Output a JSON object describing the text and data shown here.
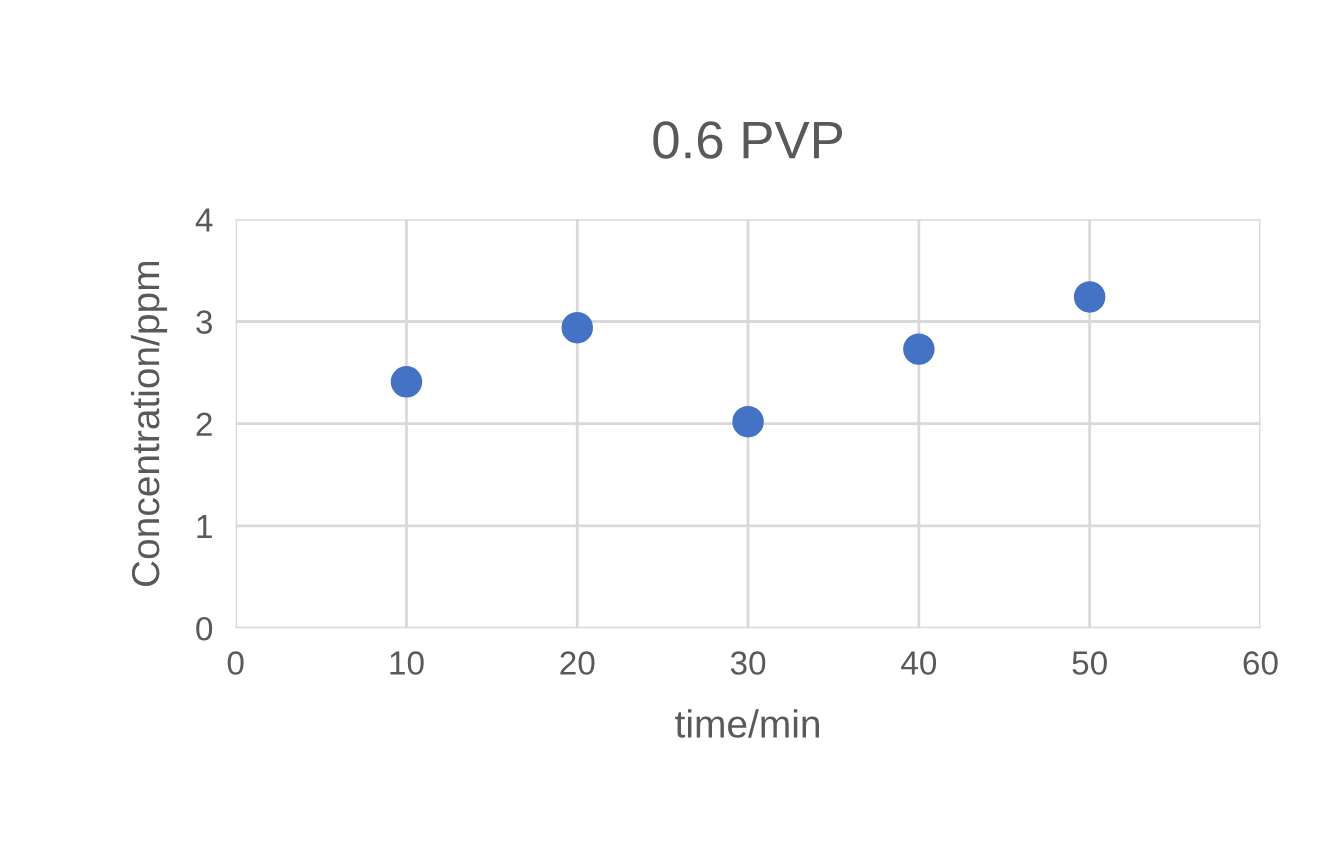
{
  "chart_data": {
    "type": "scatter",
    "title": "0.6 PVP",
    "xlabel": "time/min",
    "ylabel": "Concentration/ppm",
    "x": [
      10,
      20,
      30,
      40,
      50
    ],
    "series": [
      {
        "color": "#4472c4",
        "values": [
          2.41,
          2.94,
          2.02,
          2.73,
          3.24
        ]
      }
    ],
    "xlim": [
      0,
      60
    ],
    "xticks": [
      0,
      10,
      20,
      30,
      40,
      50,
      60
    ],
    "ylim": [
      0,
      4
    ],
    "yticks": [
      0,
      1,
      2,
      3,
      4
    ],
    "grid": true,
    "marker": "circle"
  }
}
